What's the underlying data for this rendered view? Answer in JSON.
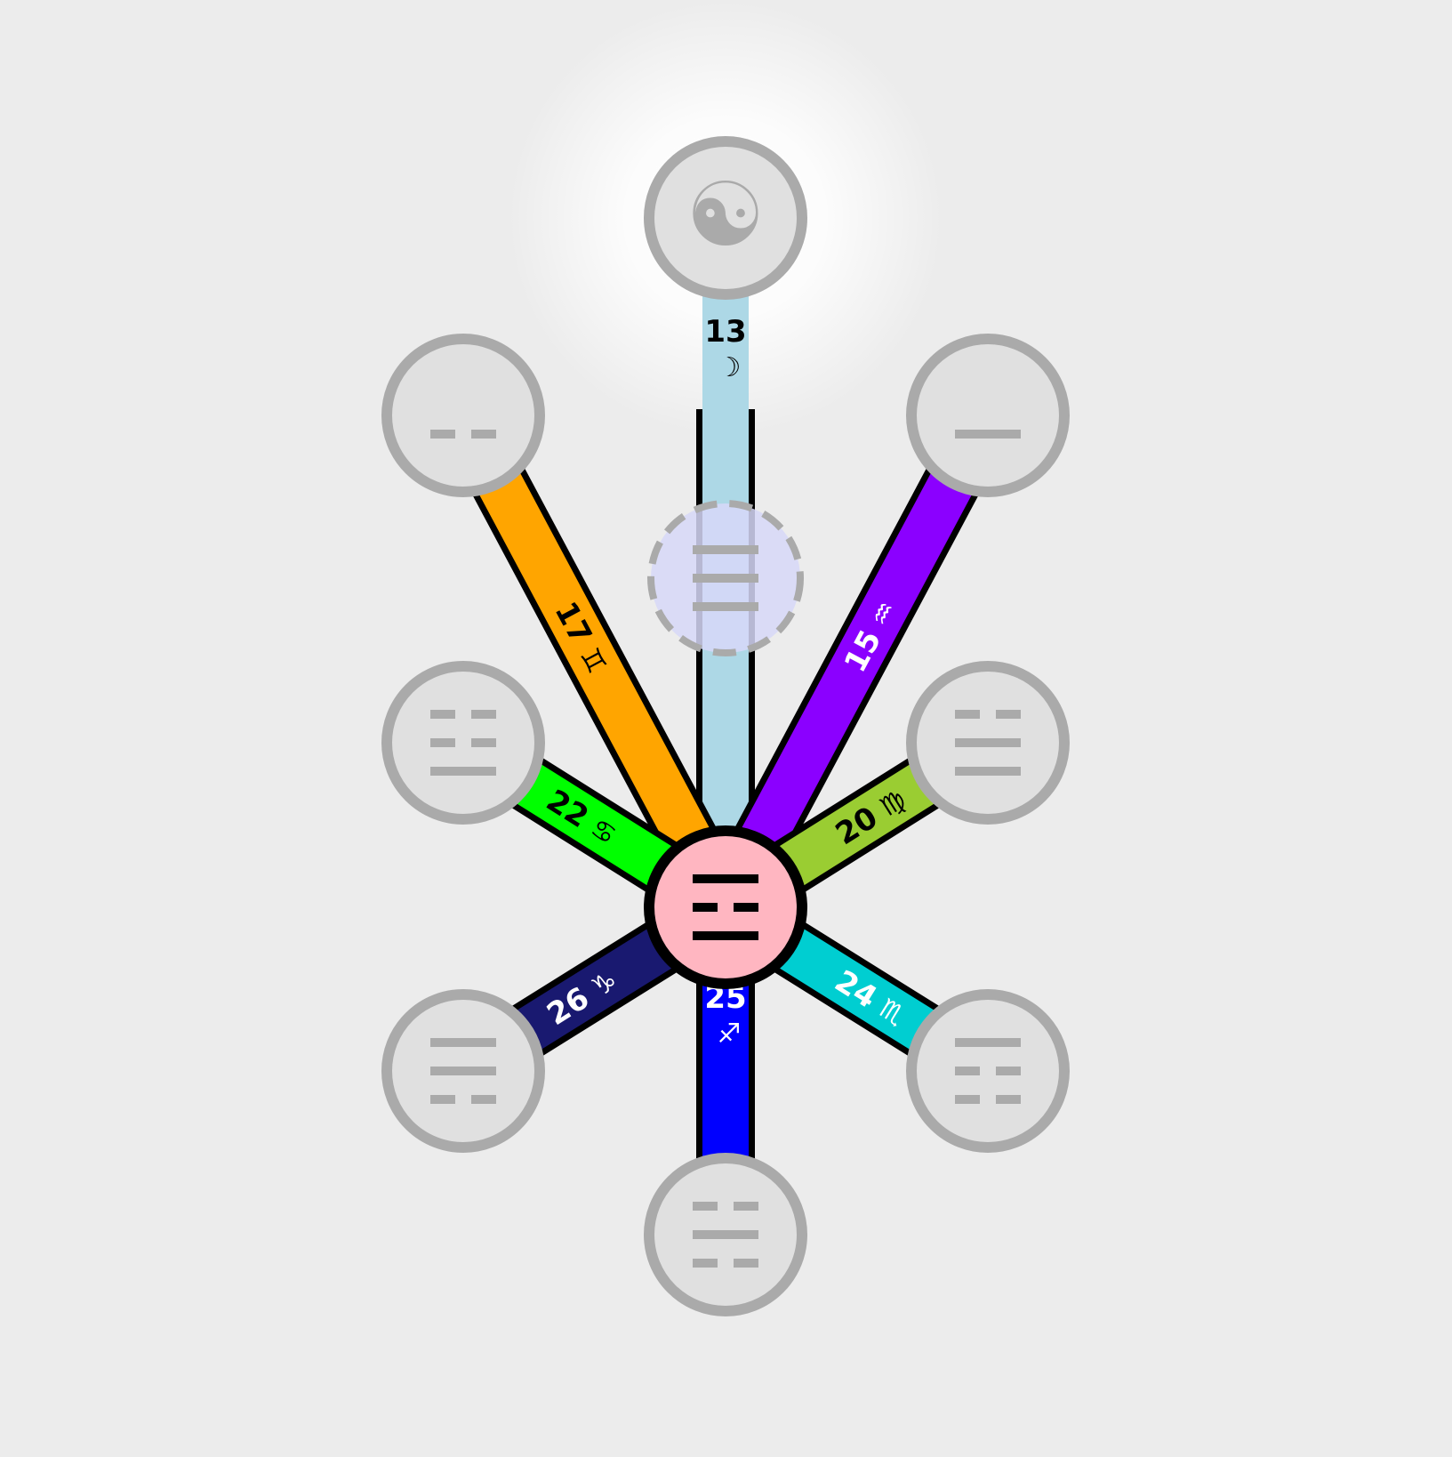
{
  "diagram": {
    "background": "#ececec",
    "node_fill": "#e0e0e0",
    "node_stroke": "#aaaaaa",
    "center": {
      "name": "center",
      "fill": "#ffb6c1",
      "stroke": "#000000",
      "lines": [
        "solid",
        "broken",
        "solid"
      ]
    },
    "ghost": {
      "name": "ghost",
      "fill": "#d7d8f8",
      "lines": [
        "solid",
        "solid",
        "solid"
      ]
    },
    "nodes": [
      {
        "name": "top",
        "symbol": "☯",
        "lines": []
      },
      {
        "name": "upper-left",
        "lines": [
          "broken"
        ]
      },
      {
        "name": "upper-right",
        "lines": [
          "solid"
        ]
      },
      {
        "name": "mid-left",
        "lines": [
          "broken",
          "broken",
          "solid"
        ]
      },
      {
        "name": "mid-right",
        "lines": [
          "broken",
          "solid",
          "solid"
        ]
      },
      {
        "name": "lower-left",
        "lines": [
          "solid",
          "solid",
          "broken"
        ]
      },
      {
        "name": "lower-right",
        "lines": [
          "solid",
          "broken",
          "broken"
        ]
      },
      {
        "name": "bottom",
        "lines": [
          "broken",
          "solid",
          "broken"
        ]
      }
    ],
    "paths": [
      {
        "to": "top",
        "number": "13",
        "glyph": "☽",
        "color": "#add8e6",
        "text_color": "#000000"
      },
      {
        "to": "upper-left",
        "number": "17",
        "glyph": "♊",
        "color": "#ffa500",
        "text_color": "#000000"
      },
      {
        "to": "upper-right",
        "number": "15",
        "glyph": "♒",
        "color": "#8b00ff",
        "text_color": "#ffffff"
      },
      {
        "to": "mid-left",
        "number": "22",
        "glyph": "♋",
        "color": "#00ff00",
        "text_color": "#000000"
      },
      {
        "to": "mid-right",
        "number": "20",
        "glyph": "♍",
        "color": "#9acd32",
        "text_color": "#000000"
      },
      {
        "to": "lower-left",
        "number": "26",
        "glyph": "♑",
        "color": "#191970",
        "text_color": "#ffffff"
      },
      {
        "to": "lower-right",
        "number": "24",
        "glyph": "♏",
        "color": "#00ced1",
        "text_color": "#ffffff"
      },
      {
        "to": "bottom",
        "number": "25",
        "glyph": "♐",
        "color": "#0000ff",
        "text_color": "#ffffff"
      }
    ]
  }
}
